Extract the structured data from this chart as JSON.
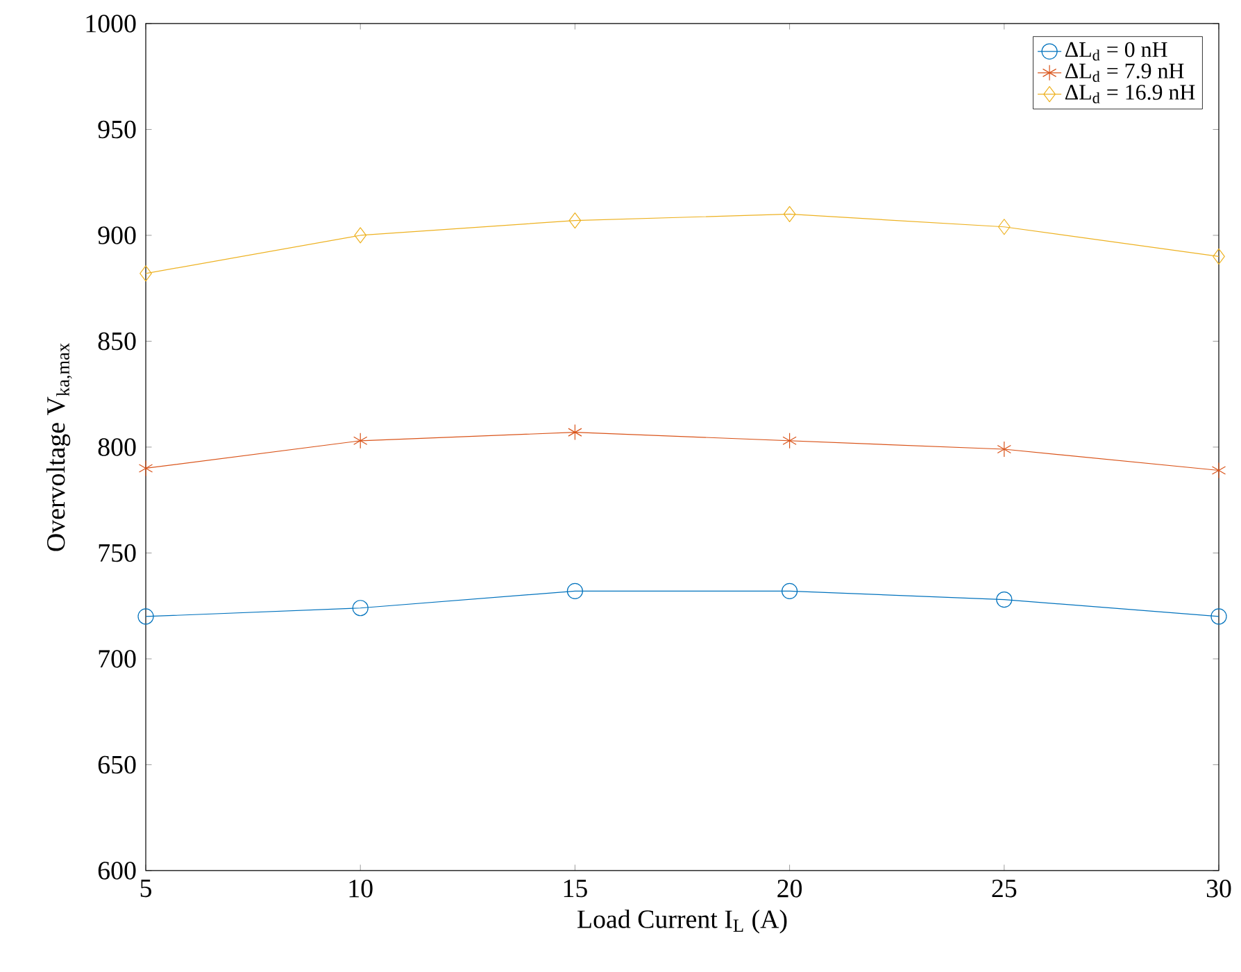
{
  "chart_data": {
    "type": "line",
    "xlabel": "Load Current I$_{L}$ (A)",
    "ylabel": "Overvoltage V$_{ka,max}$",
    "x": [
      5,
      10,
      15,
      20,
      25,
      30
    ],
    "series": [
      {
        "name": "ΔL$_{d}$ = 0 nH",
        "color": "#0072bd",
        "marker": "circle",
        "values": [
          720,
          724,
          732,
          732,
          728,
          720
        ]
      },
      {
        "name": "ΔL$_{d}$ = 7.9 nH",
        "color": "#d95319",
        "marker": "cross",
        "values": [
          790,
          803,
          807,
          803,
          799,
          789
        ]
      },
      {
        "name": "ΔL$_{d}$ = 16.9 nH",
        "color": "#edb120",
        "marker": "diamond",
        "values": [
          882,
          900,
          907,
          910,
          904,
          890
        ]
      }
    ],
    "xlim": [
      5,
      30
    ],
    "ylim": [
      600,
      1000
    ],
    "xticks": [
      5,
      10,
      15,
      20,
      25,
      30
    ],
    "yticks": [
      600,
      650,
      700,
      750,
      800,
      850,
      900,
      950,
      1000
    ],
    "legend": "top right",
    "grid": false
  }
}
